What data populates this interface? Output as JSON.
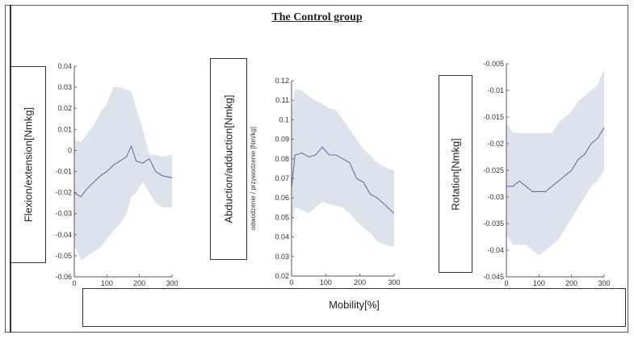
{
  "title": "The Control group",
  "xlabel_shared": "Mobility[%]",
  "colors": {
    "band": "#dde3ec",
    "line": "#6a6fa8",
    "axis": "#555555"
  },
  "chart_data": [
    {
      "type": "area",
      "ylabel": "Flexion/extension[Nmkg]",
      "xlim": [
        0,
        300
      ],
      "ylim": [
        -0.06,
        0.04
      ],
      "xticks": [
        0,
        100,
        200,
        300
      ],
      "yticks": [
        -0.06,
        -0.05,
        -0.04,
        -0.03,
        -0.02,
        -0.01,
        0,
        0.01,
        0.02,
        0.03,
        0.04
      ],
      "ytick_labels": [
        "-0.06",
        "-0.05",
        "-0.04",
        "-0.03",
        "-0.02",
        "-0.01",
        "0",
        "0.01",
        "0.02",
        "0.03",
        "0.04"
      ],
      "x": [
        0,
        20,
        40,
        60,
        80,
        100,
        120,
        140,
        160,
        175,
        190,
        210,
        230,
        250,
        270,
        300
      ],
      "mean": [
        -0.02,
        -0.022,
        -0.018,
        -0.015,
        -0.012,
        -0.01,
        -0.007,
        -0.005,
        -0.003,
        0.002,
        -0.005,
        -0.006,
        -0.004,
        -0.01,
        -0.012,
        -0.013
      ],
      "upper": [
        0.005,
        0.004,
        0.008,
        0.012,
        0.018,
        0.022,
        0.03,
        0.03,
        0.029,
        0.028,
        0.02,
        0.01,
        -0.002,
        -0.002,
        -0.003,
        -0.002
      ],
      "lower": [
        -0.045,
        -0.052,
        -0.05,
        -0.048,
        -0.046,
        -0.042,
        -0.038,
        -0.035,
        -0.03,
        -0.022,
        -0.02,
        -0.015,
        -0.02,
        -0.025,
        -0.027,
        -0.027
      ]
    },
    {
      "type": "area",
      "ylabel": "Abduction/adduction[Nmkg]",
      "inner_ylabel": "odwodzenie / przywodzenie [Nm/kg]",
      "xlim": [
        0,
        300
      ],
      "ylim": [
        0.02,
        0.12
      ],
      "xticks": [
        0,
        100,
        200,
        300
      ],
      "yticks": [
        0.02,
        0.03,
        0.04,
        0.05,
        0.06,
        0.07,
        0.08,
        0.09,
        0.1,
        0.11,
        0.12
      ],
      "ytick_labels": [
        "0.02",
        "0.03",
        "0.04",
        "0.05",
        "0.06",
        "0.07",
        "0.08",
        "0.09",
        "0.1",
        "0.11",
        "0.12"
      ],
      "x": [
        0,
        10,
        30,
        50,
        70,
        90,
        110,
        130,
        150,
        170,
        190,
        210,
        230,
        250,
        270,
        300
      ],
      "mean": [
        0.065,
        0.082,
        0.083,
        0.081,
        0.082,
        0.086,
        0.082,
        0.082,
        0.08,
        0.078,
        0.07,
        0.068,
        0.062,
        0.06,
        0.057,
        0.052
      ],
      "upper": [
        0.105,
        0.116,
        0.115,
        0.112,
        0.11,
        0.108,
        0.106,
        0.105,
        0.1,
        0.095,
        0.09,
        0.085,
        0.082,
        0.078,
        0.076,
        0.074
      ],
      "lower": [
        0.045,
        0.055,
        0.054,
        0.052,
        0.055,
        0.058,
        0.057,
        0.056,
        0.055,
        0.052,
        0.048,
        0.045,
        0.042,
        0.038,
        0.036,
        0.035
      ]
    },
    {
      "type": "area",
      "ylabel": "Rotation[Nmkg]",
      "xlim": [
        0,
        300
      ],
      "ylim": [
        -0.045,
        -0.005
      ],
      "xticks": [
        0,
        100,
        200,
        300
      ],
      "yticks": [
        -0.045,
        -0.04,
        -0.035,
        -0.03,
        -0.025,
        -0.02,
        -0.015,
        -0.01,
        -0.005
      ],
      "ytick_labels": [
        "-0.045",
        "-0.04",
        "-0.035",
        "-0.03",
        "-0.025",
        "-0.02",
        "-0.015",
        "-0.01",
        "-0.005"
      ],
      "x": [
        0,
        20,
        40,
        60,
        80,
        100,
        120,
        140,
        160,
        180,
        200,
        220,
        240,
        260,
        280,
        300
      ],
      "mean": [
        -0.028,
        -0.028,
        -0.027,
        -0.028,
        -0.029,
        -0.029,
        -0.029,
        -0.028,
        -0.027,
        -0.026,
        -0.025,
        -0.023,
        -0.022,
        -0.02,
        -0.019,
        -0.017
      ],
      "upper": [
        -0.016,
        -0.018,
        -0.018,
        -0.018,
        -0.018,
        -0.018,
        -0.018,
        -0.018,
        -0.016,
        -0.015,
        -0.014,
        -0.012,
        -0.011,
        -0.01,
        -0.009,
        -0.006
      ],
      "lower": [
        -0.037,
        -0.039,
        -0.039,
        -0.039,
        -0.04,
        -0.041,
        -0.04,
        -0.039,
        -0.038,
        -0.036,
        -0.034,
        -0.032,
        -0.03,
        -0.028,
        -0.027,
        -0.025
      ]
    }
  ]
}
